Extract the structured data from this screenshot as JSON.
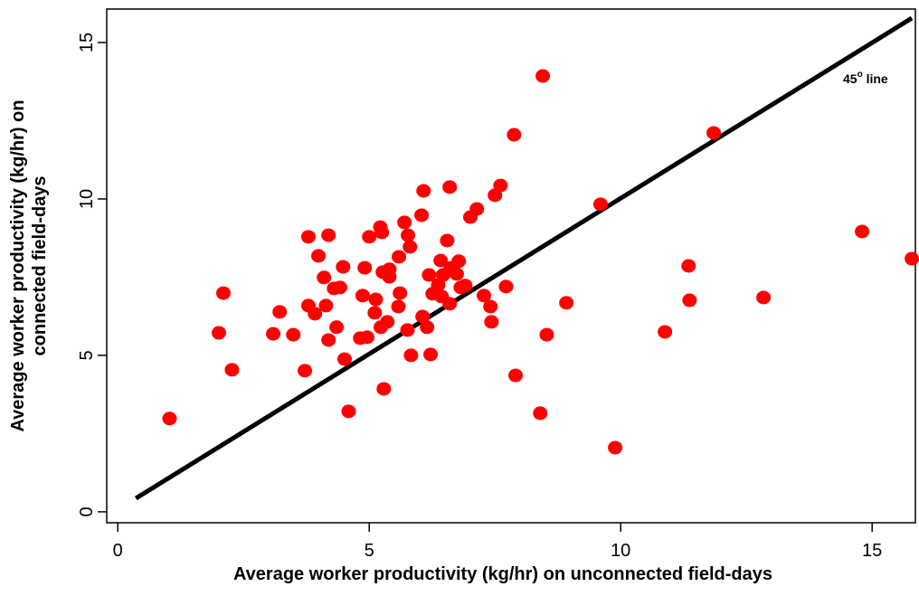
{
  "chart_data": {
    "type": "scatter",
    "xlabel": "Average worker productivity (kg/hr) on unconnected field-days",
    "ylabel": [
      "Average worker productivity (kg/hr) on",
      "connected field-days"
    ],
    "annotation": [
      "45",
      "o",
      " line"
    ],
    "color": "#ff0000",
    "xlim": [
      -0.22,
      15.86
    ],
    "ylim": [
      -0.35,
      16.07
    ],
    "xticks": [
      0,
      5,
      10,
      15
    ],
    "yticks": [
      0,
      5,
      10,
      15
    ],
    "reference_line": {
      "x": [
        0.36,
        15.79
      ],
      "y": [
        0.43,
        15.78
      ],
      "color": "#000000"
    },
    "x": [
      1.03,
      2.01,
      2.1,
      2.27,
      3.09,
      3.22,
      3.49,
      3.72,
      3.79,
      3.79,
      3.92,
      3.99,
      4.1,
      4.14,
      4.19,
      4.19,
      4.3,
      4.35,
      4.42,
      4.48,
      4.51,
      4.59,
      4.82,
      4.87,
      4.91,
      4.96,
      5.0,
      5.11,
      5.13,
      5.22,
      5.23,
      5.25,
      5.27,
      5.29,
      5.36,
      5.4,
      5.4,
      5.58,
      5.59,
      5.61,
      5.7,
      5.76,
      5.77,
      5.81,
      5.83,
      6.04,
      6.08,
      6.06,
      6.15,
      6.19,
      6.22,
      6.26,
      6.37,
      6.42,
      6.44,
      6.47,
      6.55,
      6.6,
      6.6,
      6.62,
      6.74,
      6.78,
      6.82,
      6.91,
      7.01,
      7.14,
      7.28,
      7.41,
      7.43,
      7.5,
      7.61,
      7.72,
      7.88,
      7.91,
      8.4,
      8.45,
      8.53,
      8.92,
      9.6,
      9.89,
      10.88,
      11.35,
      11.37,
      11.85,
      12.84,
      14.8,
      15.79
    ],
    "y": [
      2.98,
      5.72,
      6.99,
      4.54,
      5.69,
      6.39,
      5.66,
      4.51,
      8.79,
      6.59,
      6.33,
      8.18,
      7.49,
      6.59,
      8.84,
      5.49,
      7.14,
      5.9,
      7.17,
      7.83,
      4.88,
      3.21,
      5.55,
      6.91,
      7.8,
      5.58,
      8.79,
      6.36,
      6.79,
      9.1,
      5.9,
      8.93,
      7.66,
      3.93,
      6.07,
      7.75,
      7.51,
      6.56,
      8.15,
      6.99,
      9.25,
      5.81,
      8.84,
      8.47,
      5.0,
      9.48,
      10.26,
      6.24,
      5.9,
      7.57,
      5.03,
      6.97,
      7.25,
      8.03,
      6.88,
      7.57,
      8.67,
      10.38,
      6.65,
      7.8,
      7.6,
      8.01,
      7.17,
      7.23,
      9.42,
      9.68,
      6.91,
      6.56,
      6.07,
      10.12,
      10.43,
      7.2,
      12.05,
      4.36,
      3.15,
      13.93,
      5.66,
      6.68,
      9.83,
      2.05,
      5.75,
      7.86,
      6.76,
      12.11,
      6.85,
      8.96,
      8.09
    ]
  }
}
